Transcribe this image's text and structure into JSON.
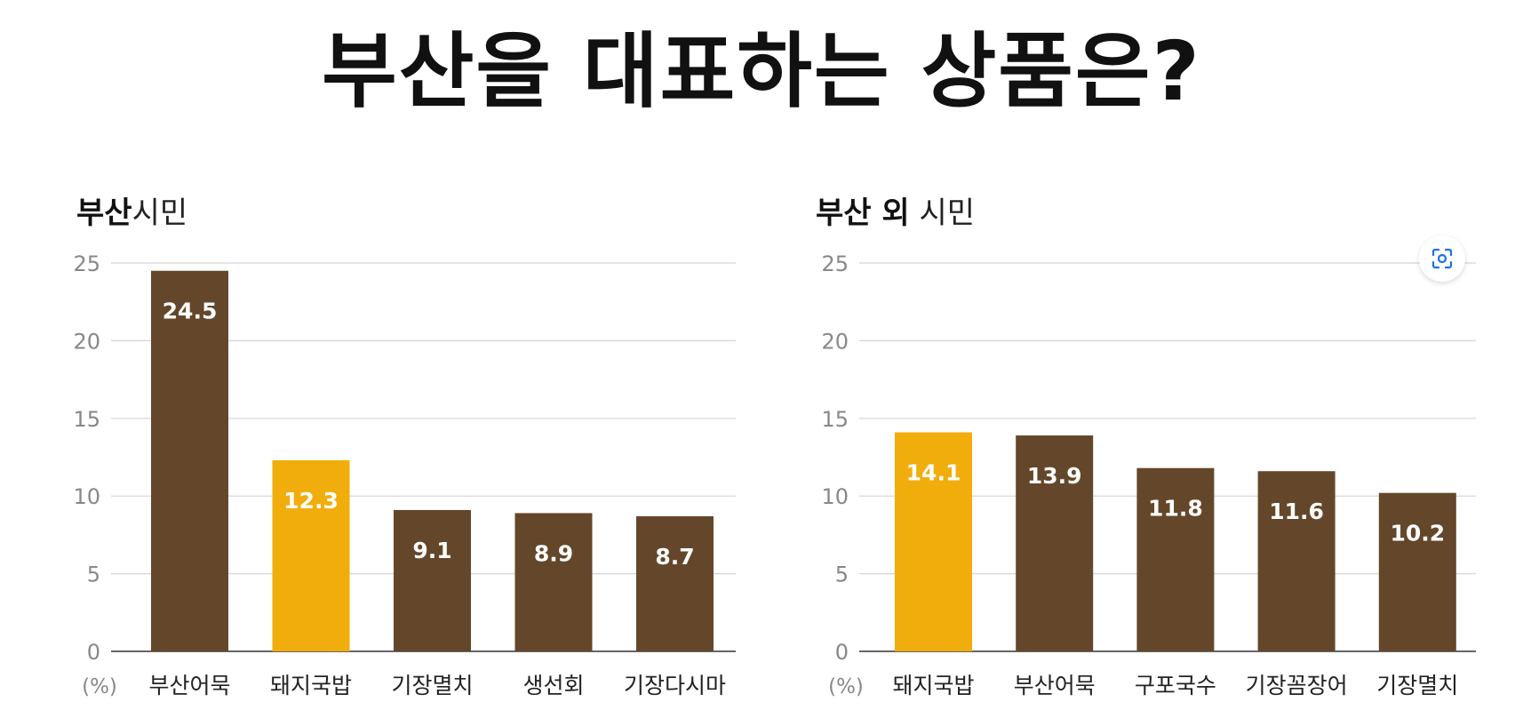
{
  "title": "부산을 대표하는 상품은?",
  "colors": {
    "default_bar": "#64472A",
    "highlight_bar": "#F1AD0B",
    "grid": "#D4D4D4",
    "axis_text": "#888888",
    "bar_label": "#FFFFFF"
  },
  "chart_data": [
    {
      "type": "bar",
      "title_strong": "부산",
      "title_light": "시민",
      "unit_label": "(%)",
      "categories": [
        "부산어묵",
        "돼지국밥",
        "기장멸치",
        "생선회",
        "기장다시마"
      ],
      "values": [
        24.5,
        12.3,
        9.1,
        8.9,
        8.7
      ],
      "value_labels": [
        "24.5",
        "12.3",
        "9.1",
        "8.9",
        "8.7"
      ],
      "highlight_index": 1,
      "yticks": [
        0,
        5,
        10,
        15,
        20,
        25
      ],
      "ylim": [
        0,
        25
      ],
      "grid": true
    },
    {
      "type": "bar",
      "title_strong": "부산 외",
      "title_light": "시민",
      "unit_label": "(%)",
      "categories": [
        "돼지국밥",
        "부산어묵",
        "구포국수",
        "기장꼼장어",
        "기장멸치"
      ],
      "values": [
        14.1,
        13.9,
        11.8,
        11.6,
        10.2
      ],
      "value_labels": [
        "14.1",
        "13.9",
        "11.8",
        "11.6",
        "10.2"
      ],
      "highlight_index": 0,
      "yticks": [
        0,
        5,
        10,
        15,
        20,
        25
      ],
      "ylim": [
        0,
        25
      ],
      "grid": true
    }
  ],
  "icons": {
    "scan_button": "scan-icon"
  }
}
